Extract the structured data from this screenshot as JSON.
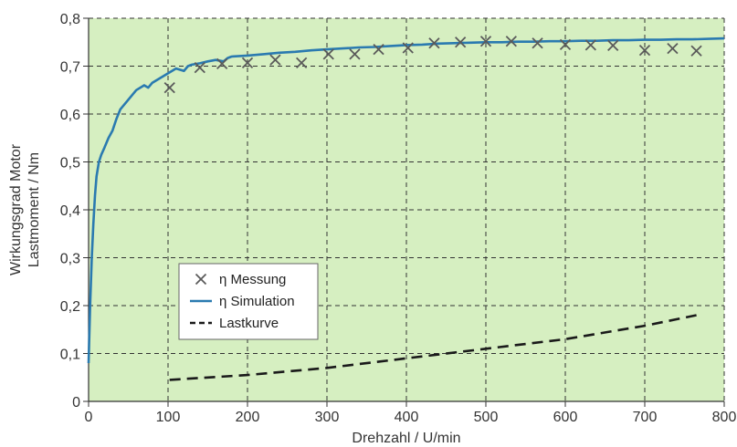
{
  "chart_data": {
    "type": "line",
    "xlabel": "Drehzahl / U/min",
    "ylabel_lines": [
      "Wirkungsgrad Motor",
      "Lastmoment / Nm"
    ],
    "xlim": [
      0,
      800
    ],
    "ylim": [
      0,
      0.8
    ],
    "x_ticks": [
      0,
      100,
      200,
      300,
      400,
      500,
      600,
      700,
      800
    ],
    "x_tick_labels": [
      "0",
      "100",
      "200",
      "300",
      "400",
      "500",
      "600",
      "700",
      "800"
    ],
    "y_ticks": [
      0,
      0.1,
      0.2,
      0.3,
      0.4,
      0.5,
      0.6,
      0.7,
      0.8
    ],
    "y_tick_labels": [
      "0",
      "0,1",
      "0,2",
      "0,3",
      "0,4",
      "0,5",
      "0,6",
      "0,7",
      "0,8"
    ],
    "grid": true,
    "legend_position": "lower-left",
    "colors": {
      "plot_background": "#d6efc1",
      "grid": "#333333",
      "simulation": "#2a7ab0",
      "measurement": "#5a5a5a",
      "load_curve": "#1a1a1a"
    },
    "series": [
      {
        "name": "η Messung",
        "style": "markers-x",
        "x": [
          102,
          140,
          168,
          200,
          235,
          268,
          302,
          335,
          365,
          402,
          435,
          468,
          500,
          532,
          565,
          600,
          632,
          660,
          700,
          735,
          765
        ],
        "y": [
          0.655,
          0.697,
          0.705,
          0.707,
          0.713,
          0.707,
          0.725,
          0.725,
          0.735,
          0.738,
          0.748,
          0.75,
          0.752,
          0.752,
          0.748,
          0.745,
          0.744,
          0.743,
          0.733,
          0.737,
          0.732
        ]
      },
      {
        "name": "η Simulation",
        "style": "solid-line",
        "x": [
          0,
          2,
          4,
          6,
          8,
          10,
          13,
          16,
          20,
          25,
          30,
          35,
          40,
          50,
          60,
          70,
          75,
          80,
          90,
          100,
          110,
          120,
          125,
          130,
          140,
          150,
          160,
          170,
          175,
          180,
          200,
          220,
          240,
          260,
          280,
          300,
          320,
          340,
          360,
          380,
          400,
          420,
          440,
          460,
          480,
          500,
          520,
          540,
          560,
          580,
          600,
          620,
          640,
          660,
          680,
          700,
          720,
          740,
          760,
          780,
          800
        ],
        "y": [
          0.08,
          0.2,
          0.3,
          0.37,
          0.43,
          0.47,
          0.5,
          0.515,
          0.53,
          0.55,
          0.565,
          0.59,
          0.61,
          0.63,
          0.65,
          0.66,
          0.655,
          0.665,
          0.675,
          0.685,
          0.695,
          0.69,
          0.7,
          0.703,
          0.706,
          0.71,
          0.713,
          0.71,
          0.717,
          0.72,
          0.722,
          0.725,
          0.728,
          0.73,
          0.733,
          0.735,
          0.737,
          0.739,
          0.74,
          0.742,
          0.744,
          0.745,
          0.747,
          0.748,
          0.749,
          0.75,
          0.75,
          0.751,
          0.751,
          0.752,
          0.752,
          0.753,
          0.753,
          0.754,
          0.754,
          0.755,
          0.755,
          0.756,
          0.756,
          0.757,
          0.758
        ]
      },
      {
        "name": "Lastkurve",
        "style": "dashed-line",
        "x": [
          102,
          200,
          300,
          400,
          500,
          600,
          700,
          765
        ],
        "y": [
          0.045,
          0.055,
          0.07,
          0.09,
          0.11,
          0.13,
          0.158,
          0.18
        ]
      }
    ]
  }
}
